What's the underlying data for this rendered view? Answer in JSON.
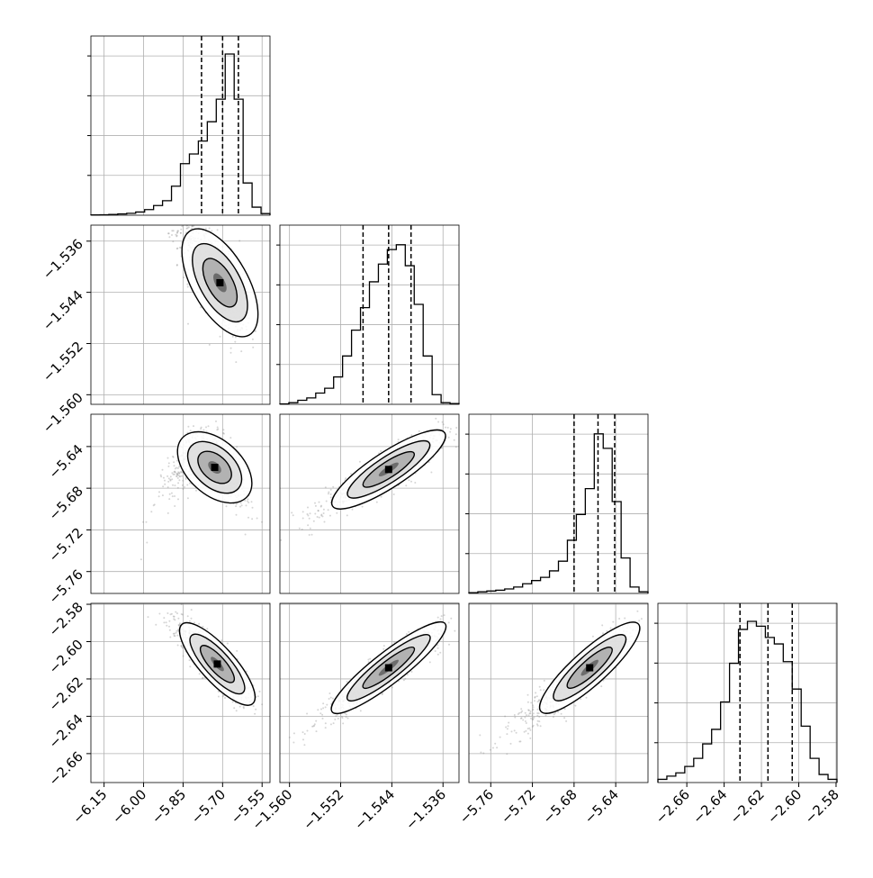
{
  "chart_data": {
    "type": "corner",
    "parameters": [
      {
        "range": [
          -6.2,
          -5.52
        ],
        "ticks": [
          -6.15,
          -6.0,
          -5.85,
          -5.7,
          -5.55
        ],
        "tick_labels": [
          "−6.15",
          "−6.00",
          "−5.85",
          "−5.70",
          "−5.55"
        ],
        "mode": -5.7,
        "quantiles": [
          -5.78,
          -5.7,
          -5.64
        ],
        "histogram": [
          0.002,
          0.003,
          0.005,
          0.008,
          0.012,
          0.02,
          0.035,
          0.06,
          0.09,
          0.18,
          0.32,
          0.38,
          0.46,
          0.58,
          0.72,
          1.0,
          0.72,
          0.2,
          0.05,
          0.01
        ]
      },
      {
        "range": [
          -1.5615,
          -1.5335
        ],
        "ticks": [
          -1.56,
          -1.552,
          -1.544,
          -1.536
        ],
        "tick_labels": [
          "−1.560",
          "−1.552",
          "−1.544",
          "−1.536"
        ],
        "mode": -1.5445,
        "quantiles": [
          -1.5485,
          -1.5445,
          -1.541
        ],
        "histogram": [
          0.003,
          0.01,
          0.025,
          0.04,
          0.07,
          0.1,
          0.17,
          0.3,
          0.46,
          0.6,
          0.76,
          0.87,
          0.96,
          0.99,
          0.86,
          0.62,
          0.3,
          0.06,
          0.01,
          0.005
        ]
      },
      {
        "range": [
          -5.781,
          -5.609
        ],
        "ticks": [
          -5.76,
          -5.72,
          -5.68,
          -5.64
        ],
        "tick_labels": [
          "−5.76",
          "−5.72",
          "−5.68",
          "−5.64"
        ],
        "mode": -5.66,
        "quantiles": [
          -5.68,
          -5.657,
          -5.641
        ],
        "histogram": [
          0.005,
          0.01,
          0.015,
          0.02,
          0.028,
          0.04,
          0.06,
          0.08,
          0.1,
          0.14,
          0.2,
          0.33,
          0.49,
          0.65,
          0.99,
          0.9,
          0.57,
          0.22,
          0.04,
          0.01
        ]
      },
      {
        "range": [
          -2.6755,
          -2.5795
        ],
        "ticks": [
          -2.66,
          -2.64,
          -2.62,
          -2.6,
          -2.58
        ],
        "tick_labels": [
          "−2.66",
          "−2.64",
          "−2.62",
          "−2.60",
          "−2.58"
        ],
        "mode": -2.619,
        "quantiles": [
          -2.6315,
          -2.6165,
          -2.6035
        ],
        "histogram": [
          0.02,
          0.04,
          0.06,
          0.1,
          0.15,
          0.24,
          0.33,
          0.5,
          0.74,
          0.95,
          1.0,
          0.97,
          0.9,
          0.86,
          0.75,
          0.58,
          0.35,
          0.15,
          0.05,
          0.02
        ]
      }
    ],
    "pairs": [
      {
        "x": 0,
        "y": 1,
        "mean": [
          -5.71,
          -1.5425
        ],
        "sd": [
          0.06,
          0.0044
        ],
        "corr": -0.72,
        "skew": 0.5,
        "bend": 0.0
      },
      {
        "x": 0,
        "y": 2,
        "mean": [
          -5.73,
          -5.66
        ],
        "sd": [
          0.07,
          0.016
        ],
        "corr": -0.55,
        "skew": 0.4,
        "bend": 1.6
      },
      {
        "x": 0,
        "y": 3,
        "mean": [
          -5.72,
          -2.612
        ],
        "sd": [
          0.07,
          0.011
        ],
        "corr": -0.85,
        "skew": 0.4,
        "bend": 0.0
      },
      {
        "x": 1,
        "y": 2,
        "mean": [
          -1.5445,
          -5.662
        ],
        "sd": [
          0.0045,
          0.018
        ],
        "corr": 0.9,
        "skew": 0.2,
        "bend": 0.0
      },
      {
        "x": 1,
        "y": 3,
        "mean": [
          -1.5445,
          -2.614
        ],
        "sd": [
          0.0045,
          0.012
        ],
        "corr": 0.93,
        "skew": 0.2,
        "bend": 0.0
      },
      {
        "x": 2,
        "y": 3,
        "mean": [
          -5.665,
          -2.614
        ],
        "sd": [
          0.024,
          0.012
        ],
        "corr": 0.9,
        "skew": 0.6,
        "bend": 0.0
      }
    ],
    "grid": true,
    "levels": [
      "0.5",
      "1.0",
      "1.5",
      "2.0"
    ]
  }
}
